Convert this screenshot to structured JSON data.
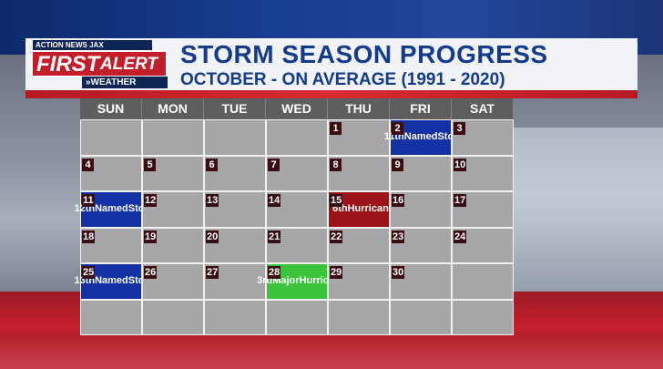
{
  "logo": {
    "station": "ACTION NEWS JAX",
    "first": "FIRST",
    "alert": "ALERT",
    "weather": "»WEATHER"
  },
  "header": {
    "title": "STORM SEASON PROGRESS",
    "subtitle": "OCTOBER - ON AVERAGE (1991 - 2020)"
  },
  "calendar": {
    "days": [
      "SUN",
      "MON",
      "TUE",
      "WED",
      "THU",
      "FRI",
      "SAT"
    ],
    "weeks": [
      [
        {
          "day": ""
        },
        {
          "day": ""
        },
        {
          "day": ""
        },
        {
          "day": ""
        },
        {
          "day": "1"
        },
        {
          "day": "2",
          "event": [
            "11th",
            "Named",
            "Storm"
          ],
          "color": "blue"
        },
        {
          "day": "3"
        }
      ],
      [
        {
          "day": "4"
        },
        {
          "day": "5"
        },
        {
          "day": "6"
        },
        {
          "day": "7"
        },
        {
          "day": "8"
        },
        {
          "day": "9"
        },
        {
          "day": "10"
        }
      ],
      [
        {
          "day": "11",
          "event": [
            "12th",
            "Named",
            "Storm"
          ],
          "color": "blue"
        },
        {
          "day": "12"
        },
        {
          "day": "13"
        },
        {
          "day": "14"
        },
        {
          "day": "15",
          "event": [
            "6th",
            "Hurricane"
          ],
          "color": "red"
        },
        {
          "day": "16"
        },
        {
          "day": "17"
        }
      ],
      [
        {
          "day": "18"
        },
        {
          "day": "19"
        },
        {
          "day": "20"
        },
        {
          "day": "21"
        },
        {
          "day": "22"
        },
        {
          "day": "23"
        },
        {
          "day": "24"
        }
      ],
      [
        {
          "day": "25",
          "event": [
            "13th",
            "Named",
            "Storm"
          ],
          "color": "blue"
        },
        {
          "day": "26"
        },
        {
          "day": "27"
        },
        {
          "day": "28",
          "event": [
            "3rd",
            "Major",
            "Hurricane"
          ],
          "color": "green"
        },
        {
          "day": "29"
        },
        {
          "day": "30"
        },
        {
          "day": ""
        }
      ],
      [
        {
          "day": ""
        },
        {
          "day": ""
        },
        {
          "day": ""
        },
        {
          "day": ""
        },
        {
          "day": ""
        },
        {
          "day": ""
        },
        {
          "day": ""
        }
      ]
    ]
  },
  "colors": {
    "title": "#123b8c",
    "named_storm": "#1432a6",
    "hurricane": "#9b1318",
    "major_hurricane": "#3ac43a",
    "cell": "#a6a6a8",
    "header_row": "#5e5e60"
  }
}
